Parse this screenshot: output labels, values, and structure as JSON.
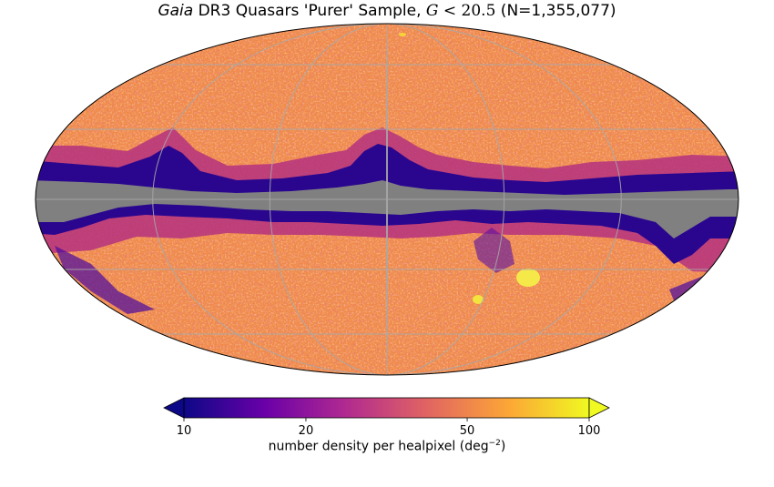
{
  "title": {
    "italic_part": "Gaia",
    "main_part": " DR3 Quasars 'Purer' Sample, ",
    "math_var": "G",
    "math_op": " < ",
    "math_val": "20.5",
    "count_part": " (N=1,355,077)"
  },
  "projection": "mollweide",
  "graticule": "on",
  "colormap": {
    "name": "plasma",
    "scale": "log",
    "colors": [
      "#0d0887",
      "#6a00a8",
      "#b12a90",
      "#e16462",
      "#fca636",
      "#f0f921"
    ],
    "masked_color": "#808080",
    "extend": "both"
  },
  "colorbar": {
    "ticks": [
      {
        "value": 10,
        "label": "10"
      },
      {
        "value": 20,
        "label": "20"
      },
      {
        "value": 50,
        "label": "50"
      },
      {
        "value": 100,
        "label": "100"
      }
    ],
    "range": [
      10,
      100
    ],
    "label_text": "number density per healpixel (deg",
    "label_sup": "−2",
    "label_close": ")"
  }
}
